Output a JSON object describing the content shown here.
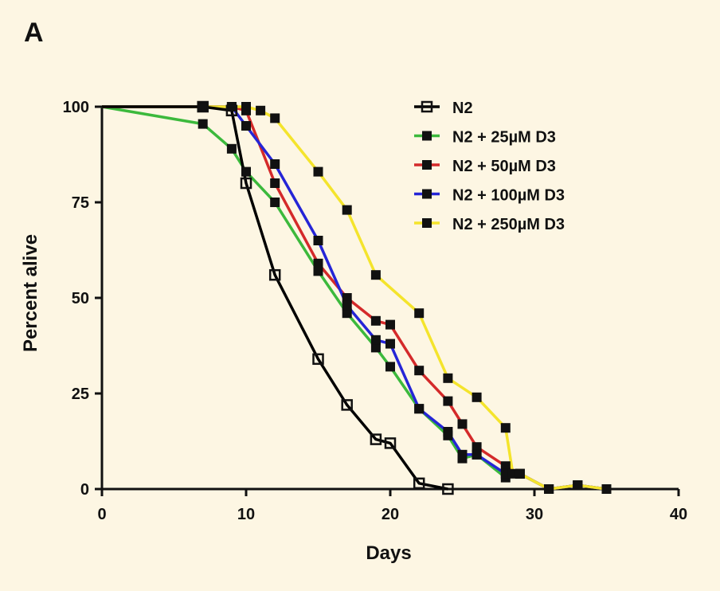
{
  "panel_label": "A",
  "chart_data": {
    "type": "line",
    "title": "",
    "xlabel": "Days",
    "ylabel": "Percent alive",
    "xlim": [
      0,
      40
    ],
    "ylim": [
      0,
      100
    ],
    "xticks": [
      0,
      10,
      20,
      30,
      40
    ],
    "yticks": [
      0,
      25,
      50,
      75,
      100
    ],
    "grid": false,
    "legend_position": "top-right",
    "series": [
      {
        "name": "N2 + 25µM D3",
        "color": "#3cb93c",
        "marker": "filled-square",
        "points": [
          [
            0,
            100
          ],
          [
            7,
            95.5
          ],
          [
            9,
            89
          ],
          [
            10,
            83
          ],
          [
            12,
            75
          ],
          [
            15,
            57
          ],
          [
            17,
            46
          ],
          [
            19,
            37
          ],
          [
            20,
            32
          ],
          [
            22,
            21
          ],
          [
            24,
            14
          ],
          [
            25,
            8
          ],
          [
            26,
            9
          ],
          [
            28,
            3
          ],
          [
            29,
            4
          ],
          [
            31,
            0
          ],
          [
            33,
            1
          ],
          [
            35,
            0
          ]
        ]
      },
      {
        "name": "N2 + 50µM D3",
        "color": "#d42a2a",
        "marker": "filled-square",
        "points": [
          [
            0,
            100
          ],
          [
            7,
            100
          ],
          [
            9,
            100
          ],
          [
            10,
            99
          ],
          [
            12,
            80
          ],
          [
            15,
            59
          ],
          [
            17,
            50
          ],
          [
            19,
            44
          ],
          [
            20,
            43
          ],
          [
            22,
            31
          ],
          [
            24,
            23
          ],
          [
            25,
            17
          ],
          [
            26,
            11
          ],
          [
            28,
            6
          ],
          [
            29,
            4
          ],
          [
            31,
            0
          ],
          [
            33,
            1
          ],
          [
            35,
            0
          ]
        ]
      },
      {
        "name": "N2 + 100µM D3",
        "color": "#2525d6",
        "marker": "filled-square",
        "points": [
          [
            0,
            100
          ],
          [
            7,
            100
          ],
          [
            9,
            100
          ],
          [
            10,
            95
          ],
          [
            12,
            85
          ],
          [
            15,
            65
          ],
          [
            17,
            48
          ],
          [
            19,
            39
          ],
          [
            20,
            38
          ],
          [
            22,
            21
          ],
          [
            24,
            15
          ],
          [
            25,
            9
          ],
          [
            26,
            9
          ],
          [
            28,
            4
          ],
          [
            29,
            4
          ],
          [
            31,
            0
          ],
          [
            33,
            1
          ],
          [
            35,
            0
          ]
        ]
      },
      {
        "name": "N2 + 250µM D3",
        "color": "#f4e42c",
        "marker": "filled-square",
        "points": [
          [
            0,
            100
          ],
          [
            7,
            100
          ],
          [
            10,
            100
          ],
          [
            11,
            99
          ],
          [
            12,
            97
          ],
          [
            15,
            83
          ],
          [
            17,
            73
          ],
          [
            19,
            56
          ],
          [
            22,
            46
          ],
          [
            24,
            29
          ],
          [
            26,
            24
          ],
          [
            28,
            16
          ],
          [
            28.5,
            4
          ],
          [
            29,
            4
          ],
          [
            31,
            0
          ],
          [
            33,
            1
          ],
          [
            35,
            0
          ]
        ]
      },
      {
        "name": "N2",
        "color": "#000000",
        "marker": "open-square",
        "points": [
          [
            0,
            100
          ],
          [
            7,
            100
          ],
          [
            9,
            99
          ],
          [
            10,
            80
          ],
          [
            12,
            56
          ],
          [
            15,
            34
          ],
          [
            17,
            22
          ],
          [
            19,
            13
          ],
          [
            20,
            12
          ],
          [
            22,
            1.5
          ],
          [
            24,
            0
          ]
        ]
      }
    ],
    "legend": [
      "N2",
      "N2 + 25µM D3",
      "N2 + 50µM D3",
      "N2 + 100µM D3",
      "N2 + 250µM D3"
    ]
  }
}
